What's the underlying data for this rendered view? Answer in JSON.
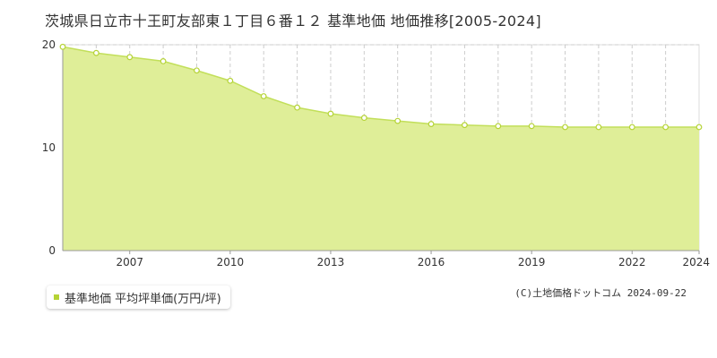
{
  "title": "茨城県日立市十王町友部東１丁目６番１２ 基準地価 地価推移[2005-2024]",
  "copyright": "(C)土地価格ドットコム 2024-09-22",
  "colors": {
    "fill": "#dfee98",
    "line": "#c2df5a",
    "marker": "#b5d335",
    "grid": "#cccccc"
  },
  "chart_data": {
    "type": "area",
    "x": [
      2005,
      2006,
      2007,
      2008,
      2009,
      2010,
      2011,
      2012,
      2013,
      2014,
      2015,
      2016,
      2017,
      2018,
      2019,
      2020,
      2021,
      2022,
      2023,
      2024
    ],
    "series": [
      {
        "name": "基準地価 平均坪単価(万円/坪)",
        "values": [
          19.8,
          19.2,
          18.8,
          18.4,
          17.5,
          16.5,
          15.0,
          13.9,
          13.3,
          12.9,
          12.6,
          12.3,
          12.2,
          12.1,
          12.1,
          12.0,
          12.0,
          12.0,
          12.0,
          12.0
        ]
      }
    ],
    "xticks": [
      2007,
      2010,
      2013,
      2016,
      2019,
      2022,
      2024
    ],
    "yticks": [
      0,
      10,
      20
    ],
    "xlim": [
      2005,
      2024
    ],
    "ylim": [
      0,
      20
    ],
    "grid": true,
    "legend": "bottom-left"
  }
}
